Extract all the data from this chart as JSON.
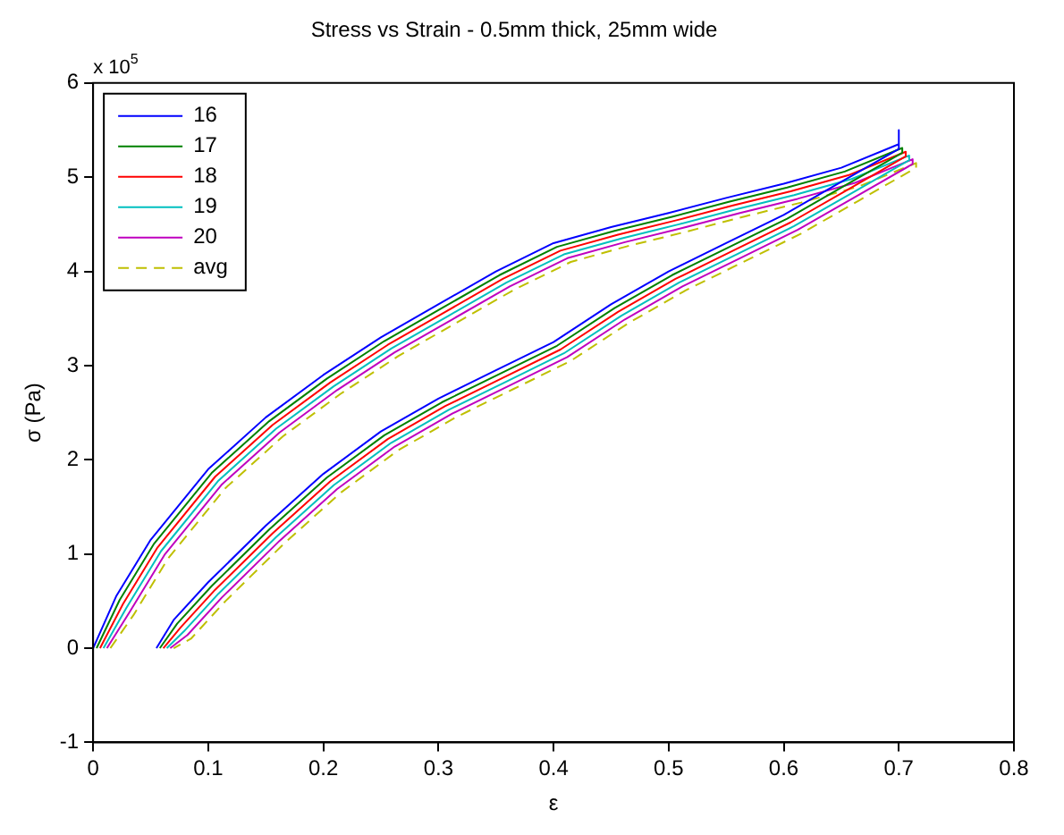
{
  "chart_data": {
    "type": "line",
    "title": "Stress vs Strain - 0.5mm thick, 25mm wide",
    "xlabel": "ε",
    "ylabel": "σ (Pa)",
    "annotations": [
      "x 10$^{5}$"
    ],
    "series": [
      {
        "name": "16",
        "color": "#0000ff",
        "x": [
          0,
          0.02,
          0.05,
          0.1,
          0.15,
          0.2,
          0.25,
          0.3,
          0.35,
          0.4,
          0.45,
          0.5,
          0.55,
          0.6,
          0.65,
          0.7,
          0.7,
          0.7,
          0.65,
          0.6,
          0.55,
          0.5,
          0.45,
          0.4,
          0.35,
          0.3,
          0.25,
          0.2,
          0.15,
          0.1,
          0.07,
          0.055
        ],
        "values": [
          0,
          0.55,
          1.15,
          1.9,
          2.45,
          2.9,
          3.3,
          3.65,
          4.0,
          4.3,
          4.47,
          4.62,
          4.78,
          4.93,
          5.1,
          5.35,
          5.5,
          5.3,
          4.95,
          4.6,
          4.3,
          4.0,
          3.65,
          3.25,
          2.95,
          2.65,
          2.3,
          1.85,
          1.3,
          0.7,
          0.3,
          0
        ]
      },
      {
        "name": "17",
        "color": "#008000",
        "x": [
          0.003,
          0.023,
          0.053,
          0.103,
          0.153,
          0.203,
          0.253,
          0.303,
          0.353,
          0.403,
          0.453,
          0.503,
          0.553,
          0.603,
          0.653,
          0.703,
          0.703,
          0.703,
          0.653,
          0.603,
          0.553,
          0.503,
          0.453,
          0.403,
          0.353,
          0.303,
          0.253,
          0.203,
          0.153,
          0.103,
          0.073,
          0.058
        ],
        "values": [
          0,
          0.51,
          1.11,
          1.86,
          2.41,
          2.86,
          3.26,
          3.61,
          3.96,
          4.26,
          4.43,
          4.58,
          4.74,
          4.89,
          5.06,
          5.31,
          5.31,
          5.26,
          4.91,
          4.56,
          4.26,
          3.96,
          3.61,
          3.21,
          2.91,
          2.61,
          2.26,
          1.81,
          1.26,
          0.66,
          0.26,
          0
        ]
      },
      {
        "name": "18",
        "color": "#ff0000",
        "x": [
          0.006,
          0.026,
          0.056,
          0.106,
          0.156,
          0.206,
          0.256,
          0.306,
          0.356,
          0.406,
          0.456,
          0.506,
          0.556,
          0.606,
          0.656,
          0.706,
          0.706,
          0.706,
          0.656,
          0.606,
          0.556,
          0.506,
          0.456,
          0.406,
          0.356,
          0.306,
          0.256,
          0.206,
          0.156,
          0.106,
          0.076,
          0.061
        ],
        "values": [
          0,
          0.47,
          1.07,
          1.82,
          2.37,
          2.82,
          3.22,
          3.57,
          3.92,
          4.22,
          4.39,
          4.54,
          4.7,
          4.85,
          5.02,
          5.27,
          5.27,
          5.22,
          4.87,
          4.52,
          4.22,
          3.92,
          3.57,
          3.17,
          2.87,
          2.57,
          2.22,
          1.77,
          1.22,
          0.62,
          0.22,
          0
        ]
      },
      {
        "name": "19",
        "color": "#00bfbf",
        "x": [
          0.009,
          0.029,
          0.059,
          0.109,
          0.159,
          0.209,
          0.259,
          0.309,
          0.359,
          0.409,
          0.459,
          0.509,
          0.559,
          0.609,
          0.659,
          0.709,
          0.709,
          0.709,
          0.659,
          0.609,
          0.559,
          0.509,
          0.459,
          0.409,
          0.359,
          0.309,
          0.259,
          0.209,
          0.159,
          0.109,
          0.079,
          0.064
        ],
        "values": [
          0,
          0.43,
          1.03,
          1.78,
          2.33,
          2.78,
          3.18,
          3.53,
          3.88,
          4.18,
          4.35,
          4.5,
          4.66,
          4.81,
          4.98,
          5.23,
          5.23,
          5.18,
          4.83,
          4.48,
          4.18,
          3.88,
          3.53,
          3.13,
          2.83,
          2.53,
          2.18,
          1.73,
          1.18,
          0.58,
          0.18,
          0
        ]
      },
      {
        "name": "20",
        "color": "#bf00bf",
        "x": [
          0.012,
          0.032,
          0.062,
          0.112,
          0.162,
          0.212,
          0.262,
          0.312,
          0.362,
          0.412,
          0.462,
          0.512,
          0.562,
          0.612,
          0.662,
          0.712,
          0.712,
          0.712,
          0.662,
          0.612,
          0.562,
          0.512,
          0.462,
          0.412,
          0.362,
          0.312,
          0.262,
          0.212,
          0.162,
          0.112,
          0.082,
          0.067
        ],
        "values": [
          0,
          0.39,
          0.99,
          1.74,
          2.29,
          2.74,
          3.14,
          3.49,
          3.84,
          4.14,
          4.31,
          4.46,
          4.62,
          4.77,
          4.94,
          5.19,
          5.19,
          5.14,
          4.79,
          4.44,
          4.14,
          3.84,
          3.49,
          3.09,
          2.79,
          2.49,
          2.14,
          1.69,
          1.14,
          0.54,
          0.14,
          0
        ]
      },
      {
        "name": "avg",
        "color": "#bfbf00",
        "line_style": "dashed",
        "x": [
          0.015,
          0.035,
          0.065,
          0.115,
          0.165,
          0.215,
          0.265,
          0.315,
          0.365,
          0.415,
          0.465,
          0.515,
          0.565,
          0.615,
          0.665,
          0.715,
          0.715,
          0.715,
          0.665,
          0.615,
          0.565,
          0.515,
          0.465,
          0.415,
          0.365,
          0.315,
          0.265,
          0.215,
          0.165,
          0.115,
          0.085,
          0.07
        ],
        "values": [
          0,
          0.35,
          0.95,
          1.7,
          2.25,
          2.7,
          3.1,
          3.45,
          3.8,
          4.1,
          4.27,
          4.42,
          4.58,
          4.73,
          4.9,
          5.15,
          5.15,
          5.1,
          4.75,
          4.4,
          4.1,
          3.8,
          3.45,
          3.05,
          2.75,
          2.45,
          2.1,
          1.65,
          1.1,
          0.5,
          0.1,
          0
        ]
      }
    ],
    "xlim": [
      0,
      0.8
    ],
    "xticks": [
      0,
      0.1,
      0.2,
      0.3,
      0.4,
      0.5,
      0.6,
      0.7,
      0.8
    ],
    "ylim": [
      -1,
      6
    ],
    "yticks": [
      -1,
      0,
      1,
      2,
      3,
      4,
      5,
      6
    ],
    "grid": false,
    "legend": "top left",
    "marker": "none"
  }
}
